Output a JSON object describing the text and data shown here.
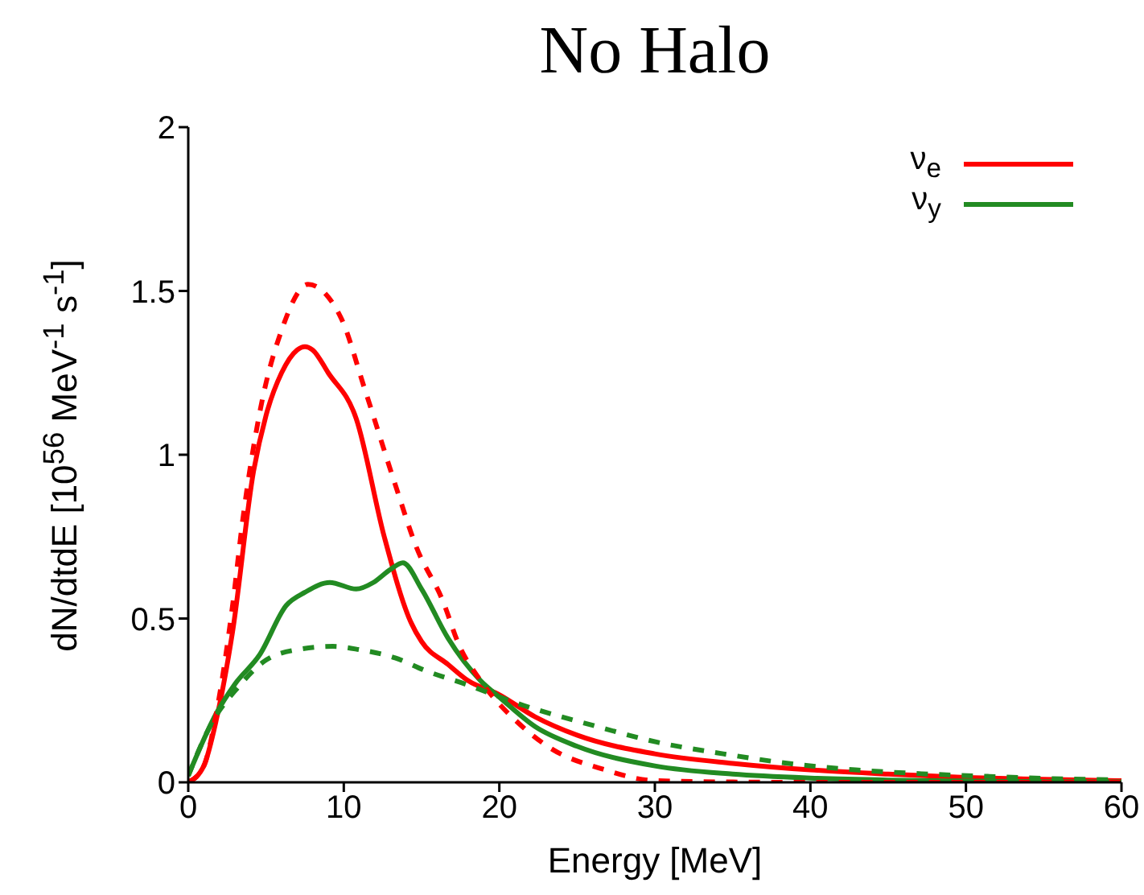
{
  "chart_data": {
    "type": "line",
    "title": "No Halo",
    "xlabel": "Energy [MeV]",
    "ylabel": "dN/dtdE [10$^{56}$ MeV$^{-1}$ s$^{-1}$]",
    "xlim": [
      0,
      60
    ],
    "xticks": [
      0,
      10,
      20,
      30,
      40,
      50,
      60
    ],
    "ylim": [
      0,
      2
    ],
    "yticks": [
      0,
      {
        "value": 0.5,
        "label": "0.5"
      },
      1,
      {
        "value": 1.5,
        "label": "1.5"
      },
      2
    ],
    "grid": false,
    "legend": "top right",
    "marker": "none",
    "series": [
      {
        "name": "ν$_{e}$",
        "color": "#ff0000",
        "line_style": "solid",
        "x": [
          0,
          1,
          1.8,
          2.85,
          4.2,
          5,
          6,
          7,
          7.5,
          8,
          9,
          10.8,
          12.6,
          14.3,
          15,
          16.7,
          18,
          19.9,
          22.3,
          25,
          30,
          35,
          40,
          45,
          50,
          55,
          60
        ],
        "values": [
          0,
          0.05,
          0.19,
          0.46,
          0.95,
          1.12,
          1.25,
          1.32,
          1.33,
          1.32,
          1.25,
          1.11,
          0.75,
          0.49,
          0.43,
          0.36,
          0.31,
          0.27,
          0.2,
          0.144,
          0.087,
          0.058,
          0.038,
          0.025,
          0.015,
          0.009,
          0.005
        ]
      },
      {
        "name": "ν$_{y}$",
        "color": "#228b22",
        "line_style": "solid",
        "x": [
          0,
          1.8,
          3,
          4.6,
          6.3,
          7.5,
          9.1,
          10.8,
          11.9,
          13,
          13.8,
          15,
          16.7,
          18.8,
          20,
          22.3,
          25,
          30,
          35,
          40,
          45,
          50,
          55,
          60
        ],
        "values": [
          0.02,
          0.21,
          0.3,
          0.39,
          0.54,
          0.58,
          0.61,
          0.59,
          0.61,
          0.65,
          0.67,
          0.59,
          0.44,
          0.31,
          0.26,
          0.17,
          0.11,
          0.05,
          0.025,
          0.013,
          0.007,
          0.004,
          0.002,
          0.001
        ]
      },
      {
        "color": "#ff0000",
        "line_style": "dashed",
        "x": [
          0,
          1,
          1.8,
          2.85,
          3.5,
          4.6,
          6,
          7.7,
          9.8,
          11.35,
          13.3,
          14.65,
          16.4,
          17.4,
          18.8,
          21.25,
          23.1,
          26.8,
          30,
          35,
          40,
          50,
          60
        ],
        "values": [
          0,
          0.05,
          0.21,
          0.54,
          0.8,
          1.13,
          1.38,
          1.52,
          1.42,
          1.2,
          0.91,
          0.72,
          0.55,
          0.42,
          0.31,
          0.18,
          0.11,
          0.038,
          0.005,
          0.001,
          0,
          0,
          0
        ]
      },
      {
        "color": "#228b22",
        "line_style": "dashed",
        "x": [
          0,
          1.5,
          3.2,
          4.9,
          7,
          9.3,
          11,
          13.3,
          15.3,
          17.8,
          21.6,
          26,
          30.1,
          34.4,
          38.7,
          42.9,
          47.2,
          51.5,
          55.6,
          59.4
        ],
        "values": [
          0.02,
          0.18,
          0.29,
          0.37,
          0.405,
          0.415,
          0.405,
          0.38,
          0.34,
          0.3,
          0.234,
          0.174,
          0.123,
          0.087,
          0.057,
          0.038,
          0.026,
          0.018,
          0.011,
          0.008
        ]
      }
    ]
  }
}
